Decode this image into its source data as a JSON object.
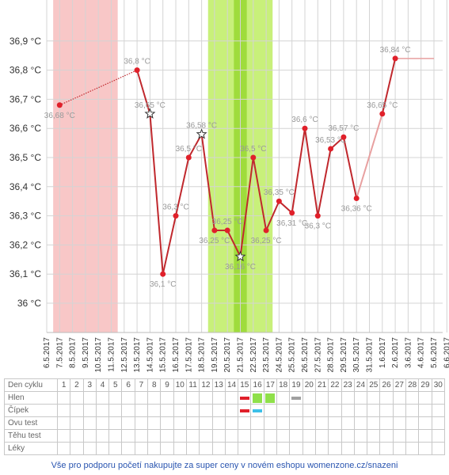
{
  "chart_data": {
    "type": "line",
    "title": "",
    "xlabel": "",
    "ylabel": "",
    "ylim": [
      35.9,
      37.0
    ],
    "grid": true,
    "y_ticks": [
      "36,9 °C",
      "36,8 °C",
      "36,7 °C",
      "36,6 °C",
      "36,5 °C",
      "36,4 °C",
      "36,3 °C",
      "36,2 °C",
      "36,1 °C",
      "36 °C"
    ],
    "y_tick_values": [
      36.9,
      36.8,
      36.7,
      36.6,
      36.5,
      36.4,
      36.3,
      36.2,
      36.1,
      36.0
    ],
    "dates": [
      "6.5.2017",
      "7.5.2017",
      "8.5.2017",
      "9.5.2017",
      "10.5.2017",
      "11.5.2017",
      "12.5.2017",
      "13.5.2017",
      "14.5.2017",
      "15.5.2017",
      "16.5.2017",
      "17.5.2017",
      "18.5.2017",
      "19.5.2017",
      "20.5.2017",
      "21.5.2017",
      "22.5.2017",
      "23.5.2017",
      "24.5.2017",
      "25.5.2017",
      "26.5.2017",
      "27.5.2017",
      "28.5.2017",
      "29.5.2017",
      "30.5.2017",
      "31.5.2017",
      "1.6.2017",
      "2.6.2017",
      "3.6.2017",
      "4.6.2017",
      "5.6.2017",
      "6.6.2017"
    ],
    "highlights": [
      {
        "kind": "menstruation",
        "from_day": 1,
        "to_day": 5,
        "color": "#f8c7c7"
      },
      {
        "kind": "fertile",
        "from_day": 13,
        "to_day": 17,
        "color": "#c8f07a"
      },
      {
        "kind": "ovulation",
        "from_day": 15,
        "to_day": 15,
        "color": "#9fdc3c"
      }
    ],
    "points": [
      {
        "day": 1,
        "date": "7.5.2017",
        "value": 36.68,
        "label": "36,68 °C",
        "marker": "dot"
      },
      {
        "day": 7,
        "date": "13.5.2017",
        "value": 36.8,
        "label": "36,8 °C",
        "marker": "dot"
      },
      {
        "day": 8,
        "date": "14.5.2017",
        "value": 36.65,
        "label": "36,65 °C",
        "marker": "star"
      },
      {
        "day": 9,
        "date": "15.5.2017",
        "value": 36.1,
        "label": "36,1 °C",
        "marker": "dot"
      },
      {
        "day": 10,
        "date": "16.5.2017",
        "value": 36.3,
        "label": "36,3 °C",
        "marker": "dot"
      },
      {
        "day": 11,
        "date": "17.5.2017",
        "value": 36.5,
        "label": "36,5 °C",
        "marker": "dot"
      },
      {
        "day": 12,
        "date": "18.5.2017",
        "value": 36.58,
        "label": "36,58 °C",
        "marker": "star"
      },
      {
        "day": 13,
        "date": "19.5.2017",
        "value": 36.25,
        "label": "36,25 °C",
        "marker": "dot"
      },
      {
        "day": 14,
        "date": "20.5.2017",
        "value": 36.25,
        "label": "36,25 °C",
        "marker": "dot"
      },
      {
        "day": 15,
        "date": "21.5.2017",
        "value": 36.16,
        "label": "36,16 °C",
        "marker": "star"
      },
      {
        "day": 16,
        "date": "22.5.2017",
        "value": 36.5,
        "label": "36,5 °C",
        "marker": "dot"
      },
      {
        "day": 17,
        "date": "23.5.2017",
        "value": 36.25,
        "label": "36,25 °C",
        "marker": "dot"
      },
      {
        "day": 18,
        "date": "24.5.2017",
        "value": 36.35,
        "label": "36,35 °C",
        "marker": "dot"
      },
      {
        "day": 19,
        "date": "25.5.2017",
        "value": 36.31,
        "label": "36,31 °C",
        "marker": "dot"
      },
      {
        "day": 20,
        "date": "26.5.2017",
        "value": 36.6,
        "label": "36,6 °C",
        "marker": "dot"
      },
      {
        "day": 21,
        "date": "27.5.2017",
        "value": 36.3,
        "label": "36,3 °C",
        "marker": "dot"
      },
      {
        "day": 22,
        "date": "28.5.2017",
        "value": 36.53,
        "label": "36,53 °C",
        "marker": "dot"
      },
      {
        "day": 23,
        "date": "29.5.2017",
        "value": 36.57,
        "label": "36,57 °C",
        "marker": "dot"
      },
      {
        "day": 24,
        "date": "30.5.2017",
        "value": 36.36,
        "label": "36,36 °C",
        "marker": "dot"
      },
      {
        "day": 26,
        "date": "1.6.2017",
        "value": 36.65,
        "label": "36,65 °C",
        "marker": "dot"
      },
      {
        "day": 27,
        "date": "2.6.2017",
        "value": 36.84,
        "label": "36,84 °C",
        "marker": "dot"
      }
    ],
    "series_color": "#c0282d",
    "dotted_segments": [
      [
        0,
        1
      ]
    ],
    "faded_segments": [
      [
        18,
        19
      ]
    ],
    "extension": {
      "from_day": 27,
      "to_day": 30,
      "value": 36.84,
      "color": "#e8a0a0"
    }
  },
  "table": {
    "rows": [
      {
        "label": "Den cyklu"
      },
      {
        "label": "Hlen"
      },
      {
        "label": "Čípek"
      },
      {
        "label": "Ovu test"
      },
      {
        "label": "Těhu test"
      },
      {
        "label": "Léky"
      }
    ],
    "days": [
      "1",
      "2",
      "3",
      "4",
      "5",
      "6",
      "7",
      "8",
      "9",
      "10",
      "11",
      "12",
      "13",
      "14",
      "15",
      "16",
      "17",
      "18",
      "19",
      "20",
      "21",
      "22",
      "23",
      "24",
      "25",
      "26",
      "27",
      "28",
      "29",
      "30"
    ],
    "marks": [
      {
        "row": 1,
        "day": 15,
        "shape": "bar",
        "color": "#e0202a"
      },
      {
        "row": 1,
        "day": 16,
        "shape": "square",
        "color": "#8fe04a"
      },
      {
        "row": 1,
        "day": 17,
        "shape": "square",
        "color": "#8fe04a"
      },
      {
        "row": 1,
        "day": 19,
        "shape": "bar",
        "color": "#a0a0a0"
      },
      {
        "row": 2,
        "day": 15,
        "shape": "bar",
        "color": "#e0202a"
      },
      {
        "row": 2,
        "day": 16,
        "shape": "bar",
        "color": "#3cc0e8"
      }
    ]
  },
  "footer": {
    "text": "Vše pro podporu početí nakupujte za super ceny v novém eshopu womenzone.cz/snazeni"
  }
}
